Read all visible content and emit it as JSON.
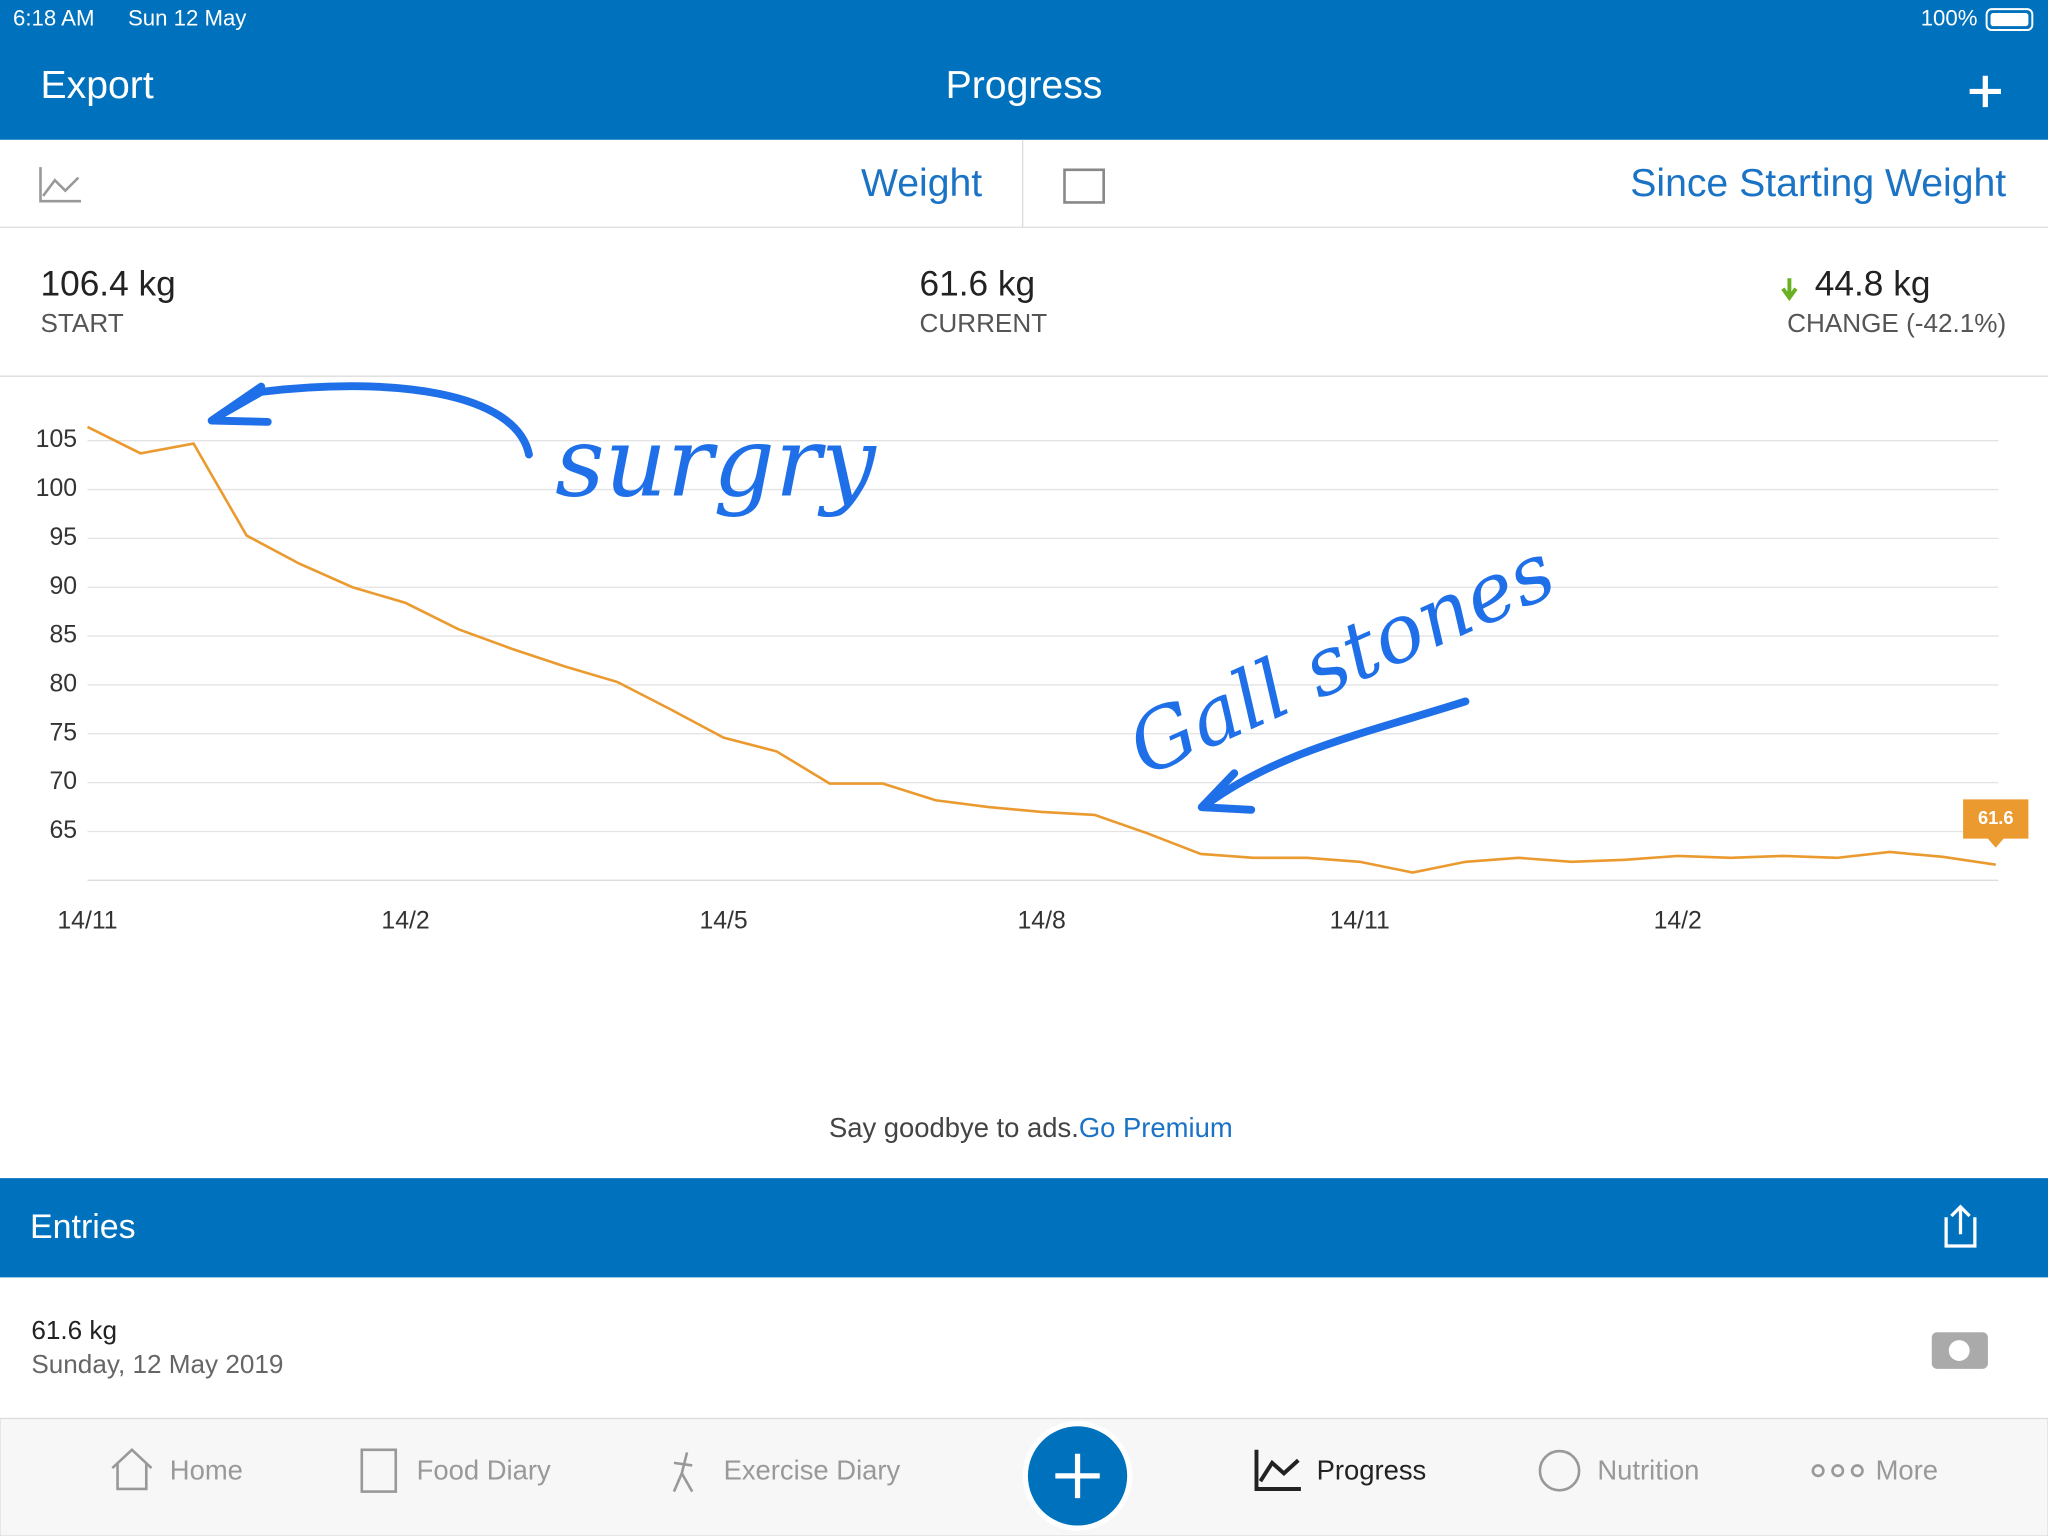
{
  "status_bar": {
    "time": "6:18 AM",
    "date": "Sun 12 May",
    "battery": "100%"
  },
  "nav": {
    "left": "Export",
    "title": "Progress"
  },
  "selector": {
    "metric": "Weight",
    "range": "Since Starting Weight"
  },
  "summary": [
    {
      "value": "106.4 kg",
      "label": "START"
    },
    {
      "value": "61.6 kg",
      "label": "CURRENT"
    },
    {
      "value": "44.8 kg",
      "label": "CHANGE (-42.1%)"
    }
  ],
  "chart_data": {
    "type": "line",
    "categories": [
      "14/11",
      null,
      null,
      null,
      null,
      null,
      "14/2",
      null,
      null,
      null,
      null,
      null,
      "14/5",
      null,
      null,
      null,
      null,
      null,
      "14/8",
      null,
      null,
      null,
      null,
      null,
      "14/11",
      null,
      null,
      null,
      null,
      null,
      "14/2",
      null,
      null,
      null,
      null,
      null,
      null
    ],
    "values": [
      106.4,
      103.7,
      104.7,
      95.3,
      92.4,
      90.0,
      88.4,
      85.7,
      83.7,
      81.9,
      80.3,
      77.5,
      74.6,
      73.2,
      69.9,
      69.9,
      68.2,
      67.5,
      67.0,
      66.7,
      64.8,
      62.7,
      62.3,
      62.3,
      61.9,
      60.8,
      61.9,
      62.3,
      61.9,
      62.1,
      62.5,
      62.3,
      62.5,
      62.3,
      62.9,
      62.4,
      61.6
    ],
    "color": "#ea9a2f",
    "ylim": [
      60,
      110
    ],
    "yticks": [
      65,
      70,
      75,
      80,
      85,
      90,
      95,
      100,
      105
    ],
    "grid": true,
    "annotations": [
      "surgry",
      "Gall stones"
    ]
  },
  "ad": {
    "text": "Say goodbye to ads.",
    "link": "Go Premium"
  },
  "entries": {
    "title": "Entries",
    "items": [
      {
        "weight": "61.6 kg",
        "date": "Sunday, 12 May 2019"
      }
    ]
  },
  "tabs": [
    "Home",
    "Food Diary",
    "Exercise Diary",
    "Progress",
    "Nutrition",
    "More"
  ]
}
